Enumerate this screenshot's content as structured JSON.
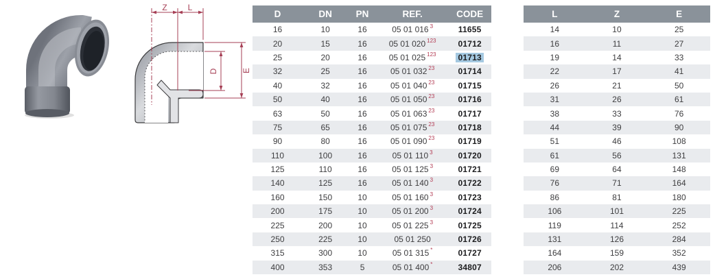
{
  "drawing": {
    "labels": {
      "z": "Z",
      "l": "L",
      "d": "D",
      "e": "E"
    }
  },
  "colors": {
    "header_bg": "#8a929a",
    "zebra_row": "#e9ebee",
    "dimension_red": "#a63f55",
    "footnote_red": "#b23a52",
    "code_highlight": "#a5c9e1"
  },
  "table1": {
    "headers": [
      "D",
      "DN",
      "PN",
      "REF.",
      "CODE"
    ],
    "keys": [
      "d",
      "dn",
      "pn",
      "ref",
      "code"
    ],
    "rows": [
      {
        "d": "16",
        "dn": "10",
        "pn": "16",
        "ref": "05 01 016",
        "sup": "3",
        "code": "11655",
        "highlight": false
      },
      {
        "d": "20",
        "dn": "15",
        "pn": "16",
        "ref": "05 01 020",
        "sup": "123",
        "code": "01712",
        "highlight": false
      },
      {
        "d": "25",
        "dn": "20",
        "pn": "16",
        "ref": "05 01 025",
        "sup": "123",
        "code": "01713",
        "highlight": true
      },
      {
        "d": "32",
        "dn": "25",
        "pn": "16",
        "ref": "05 01 032",
        "sup": "23",
        "code": "01714",
        "highlight": false
      },
      {
        "d": "40",
        "dn": "32",
        "pn": "16",
        "ref": "05 01 040",
        "sup": "23",
        "code": "01715",
        "highlight": false
      },
      {
        "d": "50",
        "dn": "40",
        "pn": "16",
        "ref": "05 01 050",
        "sup": "23",
        "code": "01716",
        "highlight": false
      },
      {
        "d": "63",
        "dn": "50",
        "pn": "16",
        "ref": "05 01 063",
        "sup": "23",
        "code": "01717",
        "highlight": false
      },
      {
        "d": "75",
        "dn": "65",
        "pn": "16",
        "ref": "05 01 075",
        "sup": "23",
        "code": "01718",
        "highlight": false
      },
      {
        "d": "90",
        "dn": "80",
        "pn": "16",
        "ref": "05 01 090",
        "sup": "23",
        "code": "01719",
        "highlight": false
      },
      {
        "d": "110",
        "dn": "100",
        "pn": "16",
        "ref": "05 01 110",
        "sup": "3",
        "code": "01720",
        "highlight": false
      },
      {
        "d": "125",
        "dn": "110",
        "pn": "16",
        "ref": "05 01 125",
        "sup": "3",
        "code": "01721",
        "highlight": false
      },
      {
        "d": "140",
        "dn": "125",
        "pn": "16",
        "ref": "05 01 140",
        "sup": "3",
        "code": "01722",
        "highlight": false
      },
      {
        "d": "160",
        "dn": "150",
        "pn": "10",
        "ref": "05 01 160",
        "sup": "3",
        "code": "01723",
        "highlight": false
      },
      {
        "d": "200",
        "dn": "175",
        "pn": "10",
        "ref": "05 01 200",
        "sup": "3",
        "code": "01724",
        "highlight": false
      },
      {
        "d": "225",
        "dn": "200",
        "pn": "10",
        "ref": "05 01 225",
        "sup": "3",
        "code": "01725",
        "highlight": false
      },
      {
        "d": "250",
        "dn": "225",
        "pn": "10",
        "ref": "05 01 250",
        "sup": "",
        "code": "01726",
        "highlight": false
      },
      {
        "d": "315",
        "dn": "300",
        "pn": "10",
        "ref": "05 01 315",
        "sup": "*",
        "code": "01727",
        "highlight": false
      },
      {
        "d": "400",
        "dn": "353",
        "pn": "5",
        "ref": "05 01 400",
        "sup": "*",
        "code": "34807",
        "highlight": false
      }
    ]
  },
  "table2": {
    "headers": [
      "L",
      "Z",
      "E"
    ],
    "keys": [
      "l",
      "z",
      "e"
    ],
    "rows": [
      {
        "l": "14",
        "z": "10",
        "e": "25"
      },
      {
        "l": "16",
        "z": "11",
        "e": "27"
      },
      {
        "l": "19",
        "z": "14",
        "e": "33"
      },
      {
        "l": "22",
        "z": "17",
        "e": "41"
      },
      {
        "l": "26",
        "z": "21",
        "e": "50"
      },
      {
        "l": "31",
        "z": "26",
        "e": "61"
      },
      {
        "l": "38",
        "z": "33",
        "e": "76"
      },
      {
        "l": "44",
        "z": "39",
        "e": "90"
      },
      {
        "l": "51",
        "z": "46",
        "e": "108"
      },
      {
        "l": "61",
        "z": "56",
        "e": "131"
      },
      {
        "l": "69",
        "z": "64",
        "e": "148"
      },
      {
        "l": "76",
        "z": "71",
        "e": "164"
      },
      {
        "l": "86",
        "z": "81",
        "e": "180"
      },
      {
        "l": "106",
        "z": "101",
        "e": "225"
      },
      {
        "l": "119",
        "z": "114",
        "e": "252"
      },
      {
        "l": "131",
        "z": "126",
        "e": "284"
      },
      {
        "l": "164",
        "z": "159",
        "e": "352"
      },
      {
        "l": "206",
        "z": "202",
        "e": "439"
      }
    ]
  }
}
